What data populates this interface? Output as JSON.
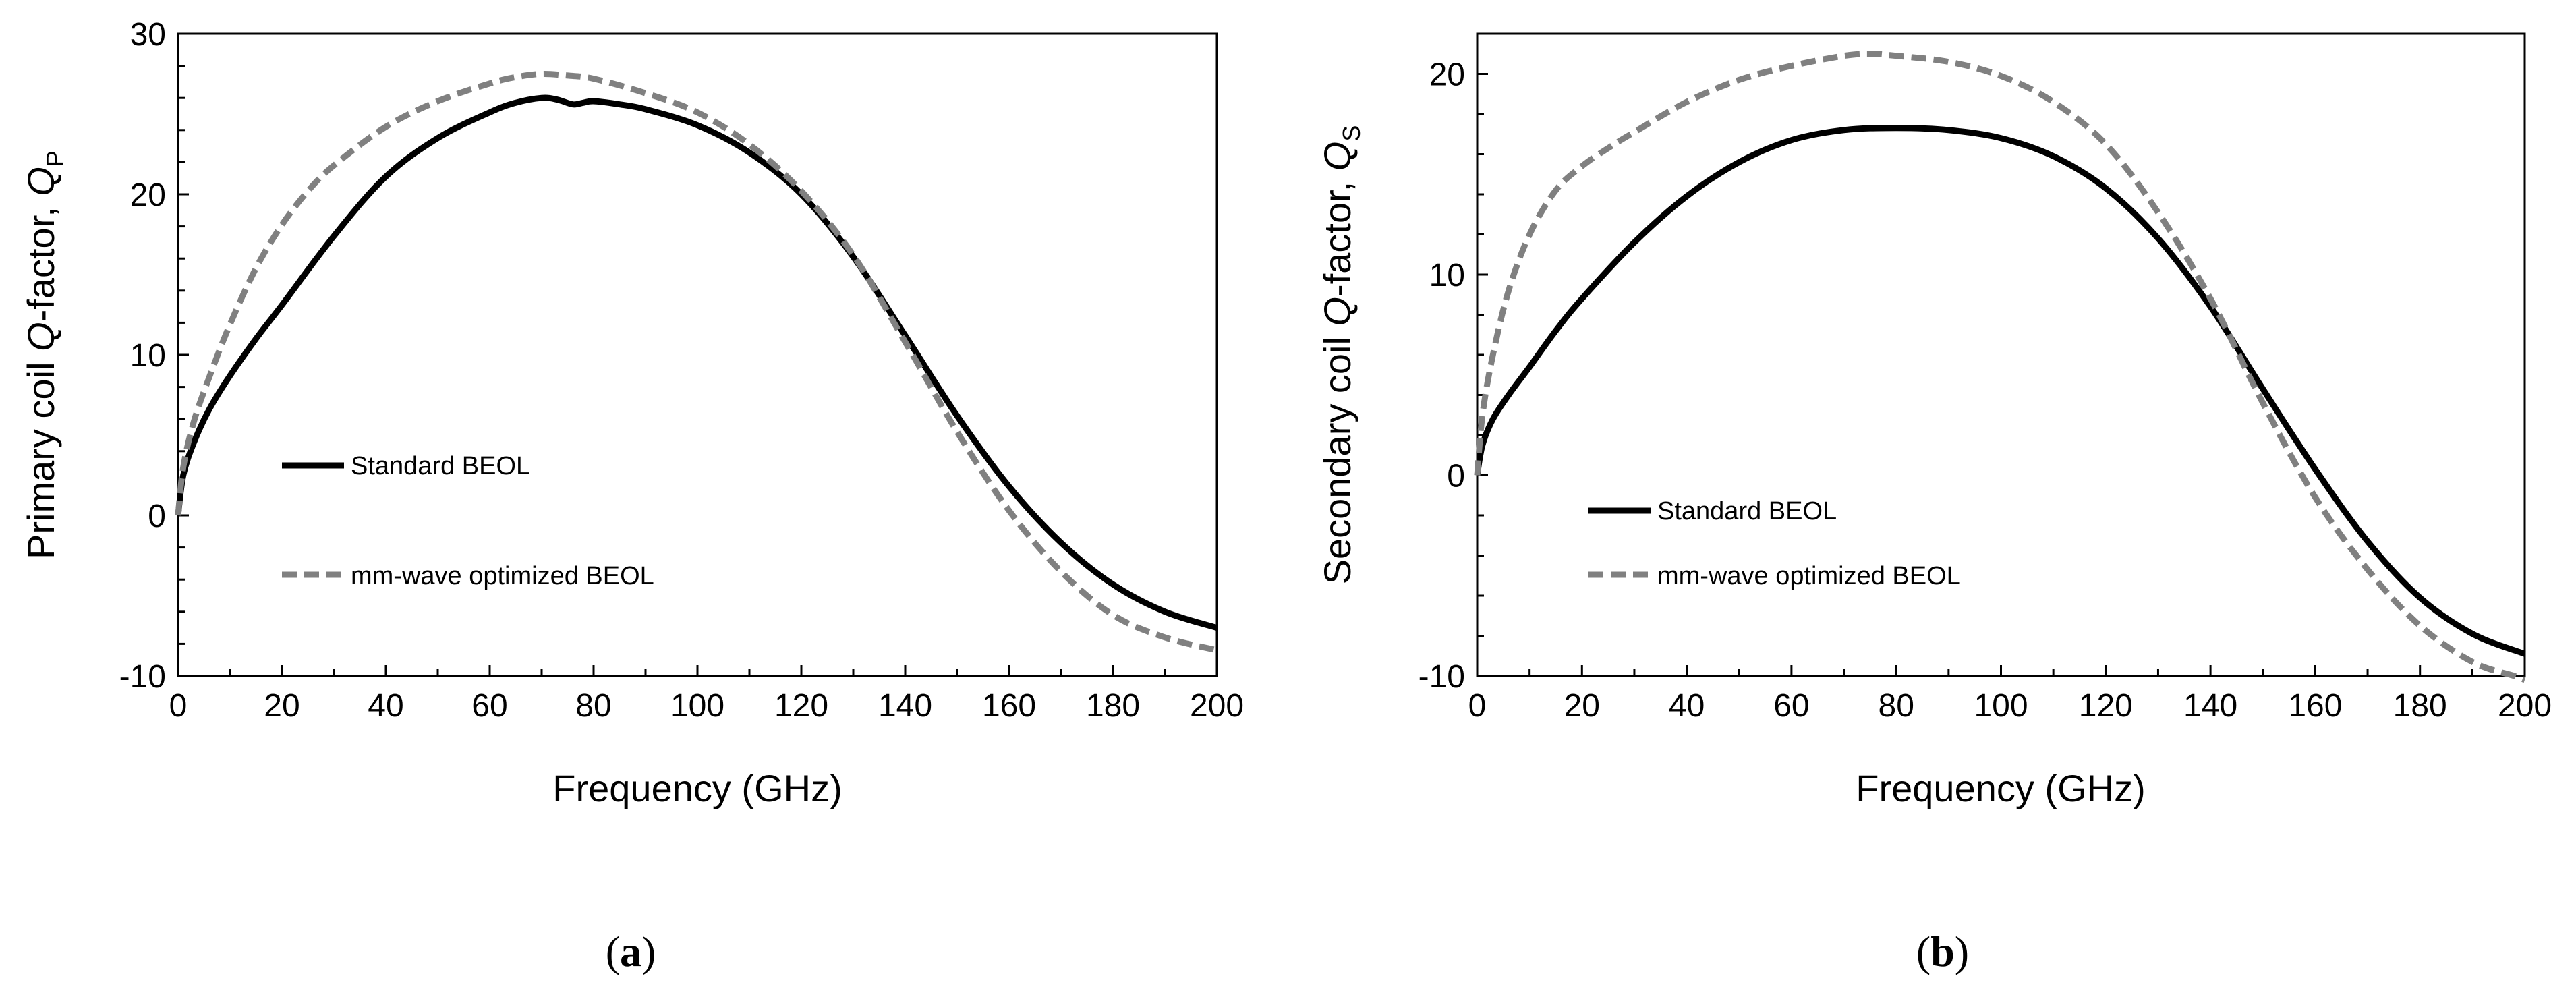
{
  "chart_data": [
    {
      "type": "line",
      "panel": "a",
      "caption": "a",
      "xlabel": "Frequency (GHz)",
      "ylabel_main": "Primary coil ",
      "ylabel_italic": "Q",
      "ylabel_rest": "-factor, ",
      "ylabel_sym": "Q",
      "ylabel_sub": "P",
      "xlim": [
        0,
        200
      ],
      "ylim": [
        -10,
        30
      ],
      "xticks": [
        0,
        20,
        40,
        60,
        80,
        100,
        120,
        140,
        160,
        180,
        200
      ],
      "yticks": [
        -10,
        0,
        10,
        20,
        30
      ],
      "series": [
        {
          "name": "Standard BEOL",
          "style": "solid",
          "color": "#000000",
          "x": [
            0,
            1,
            3,
            6,
            10,
            15,
            20,
            30,
            40,
            50,
            60,
            65,
            70,
            73,
            76,
            78,
            80,
            85,
            90,
            100,
            110,
            120,
            130,
            140,
            150,
            160,
            170,
            180,
            190,
            200
          ],
          "y": [
            0,
            2.5,
            4.5,
            6.6,
            8.7,
            11.0,
            13.1,
            17.4,
            21.1,
            23.5,
            25.1,
            25.7,
            26.0,
            25.9,
            25.6,
            25.7,
            25.8,
            25.6,
            25.3,
            24.3,
            22.6,
            20.0,
            16.1,
            11.2,
            6.2,
            1.8,
            -1.7,
            -4.3,
            -6.0,
            -7.0
          ]
        },
        {
          "name": "mm-wave optimized BEOL",
          "style": "dashed",
          "color": "#808080",
          "x": [
            0,
            1,
            3,
            6,
            10,
            15,
            20,
            25,
            30,
            40,
            50,
            60,
            65,
            70,
            75,
            80,
            90,
            100,
            110,
            120,
            130,
            140,
            150,
            160,
            170,
            180,
            190,
            200
          ],
          "y": [
            0,
            3.0,
            5.8,
            8.6,
            11.9,
            15.4,
            18.1,
            20.2,
            21.8,
            24.2,
            25.8,
            26.9,
            27.3,
            27.5,
            27.4,
            27.2,
            26.3,
            25.1,
            23.1,
            20.2,
            16.2,
            10.8,
            5.2,
            0.3,
            -3.5,
            -6.2,
            -7.6,
            -8.4
          ]
        }
      ]
    },
    {
      "type": "line",
      "panel": "b",
      "caption": "b",
      "xlabel": "Frequency (GHz)",
      "ylabel_main": "Secondary coil ",
      "ylabel_italic": "Q",
      "ylabel_rest": "-factor, ",
      "ylabel_sym": "Q",
      "ylabel_sub": "S",
      "xlim": [
        0,
        200
      ],
      "ylim": [
        -10,
        22
      ],
      "xticks": [
        0,
        20,
        40,
        60,
        80,
        100,
        120,
        140,
        160,
        180,
        200
      ],
      "yticks": [
        -10,
        0,
        10,
        20
      ],
      "series": [
        {
          "name": "Standard BEOL",
          "style": "solid",
          "color": "#000000",
          "x": [
            0,
            1,
            3,
            6,
            10,
            15,
            20,
            30,
            40,
            50,
            60,
            70,
            80,
            90,
            100,
            110,
            120,
            130,
            140,
            150,
            160,
            170,
            180,
            190,
            200
          ],
          "y": [
            0,
            1.5,
            2.8,
            4.0,
            5.4,
            7.2,
            8.8,
            11.6,
            13.9,
            15.6,
            16.7,
            17.2,
            17.3,
            17.2,
            16.8,
            15.9,
            14.3,
            11.8,
            8.4,
            4.3,
            0.3,
            -3.3,
            -6.1,
            -7.9,
            -8.9
          ]
        },
        {
          "name": "mm-wave optimized BEOL",
          "style": "dashed",
          "color": "#808080",
          "x": [
            0,
            1,
            3,
            6,
            10,
            15,
            20,
            25,
            30,
            40,
            50,
            60,
            70,
            75,
            80,
            90,
            100,
            110,
            120,
            130,
            140,
            150,
            160,
            170,
            180,
            190,
            198,
            200
          ],
          "y": [
            0,
            3.0,
            6.0,
            9.2,
            12.0,
            14.2,
            15.4,
            16.3,
            17.1,
            18.6,
            19.7,
            20.4,
            20.9,
            21.0,
            20.9,
            20.6,
            19.9,
            18.6,
            16.5,
            13.1,
            8.8,
            3.6,
            -1.1,
            -4.7,
            -7.5,
            -9.3,
            -10.0,
            -10.2
          ]
        }
      ]
    }
  ]
}
